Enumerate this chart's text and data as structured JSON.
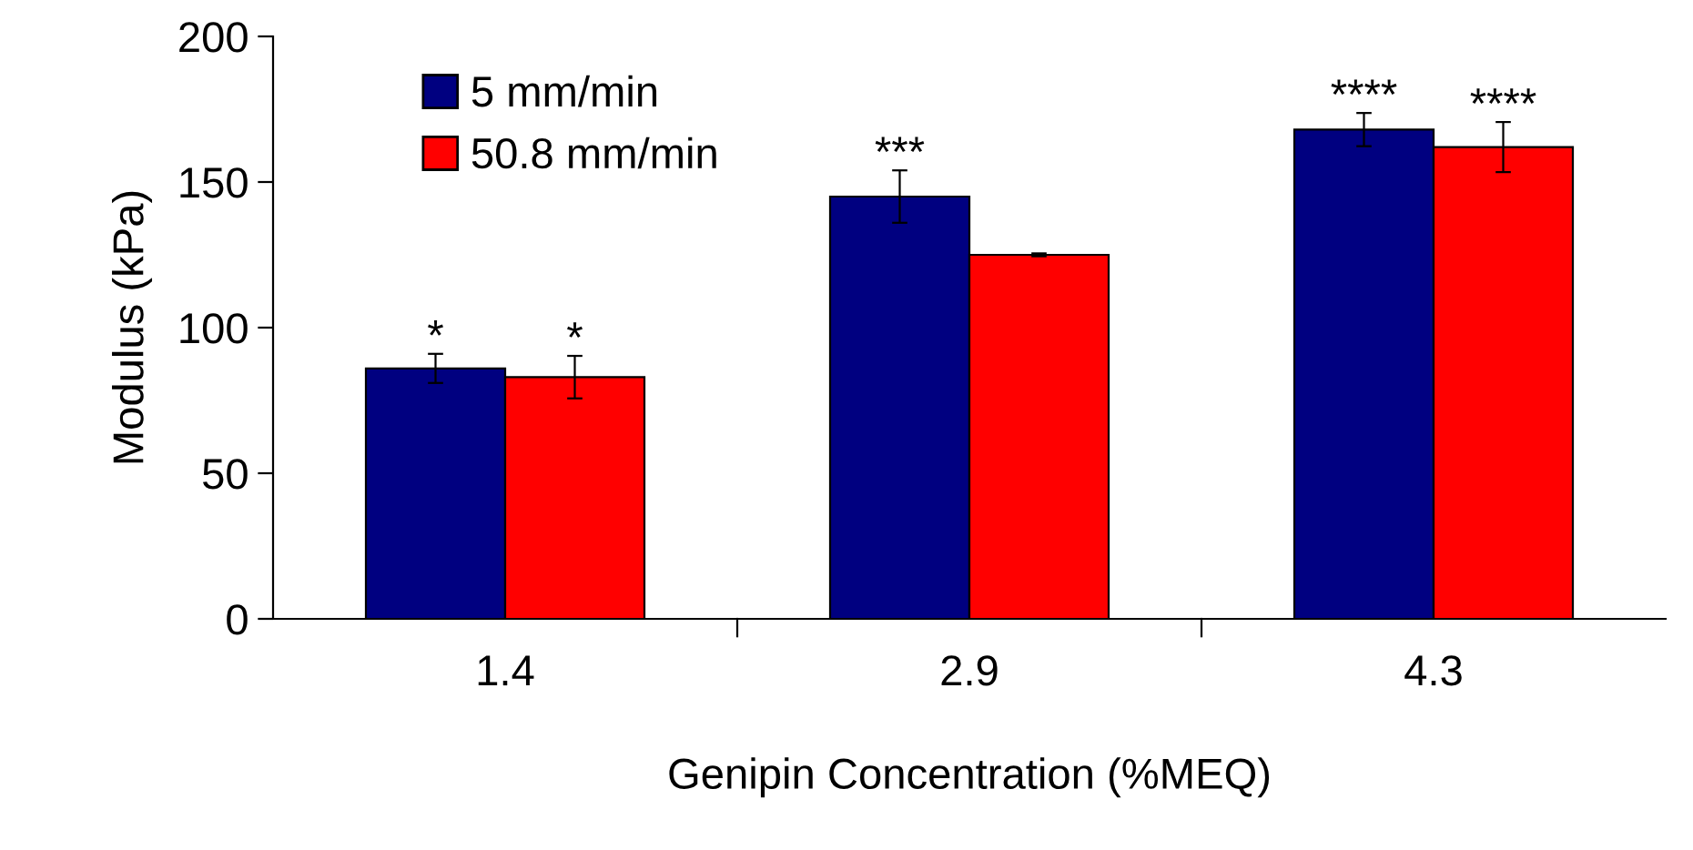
{
  "chart_data": {
    "type": "bar",
    "xlabel": "Genipin Concentration (%MEQ)",
    "ylabel": "Modulus (kPa)",
    "categories": [
      "1.4",
      "2.9",
      "4.3"
    ],
    "series": [
      {
        "name": "5 mm/min",
        "color": "#000080",
        "values": [
          86,
          145,
          168
        ],
        "errors": [
          5,
          9,
          5.7
        ]
      },
      {
        "name": "50.8 mm/min",
        "color": "#ff0000",
        "values": [
          83,
          125,
          162
        ],
        "errors": [
          7.3,
          0.5,
          8.6
        ]
      }
    ],
    "ylim": [
      0,
      200
    ],
    "yticks": [
      0,
      50,
      100,
      150,
      200
    ],
    "grid": false,
    "legend": "top left",
    "annotations": [
      {
        "text": "*",
        "x": "1.4",
        "y": 86
      },
      {
        "text": "*",
        "x": "1.4",
        "y": 83
      },
      {
        "text": "***",
        "x": "2.9",
        "y": 145
      },
      {
        "text": "****",
        "x": "4.3",
        "y": 168
      },
      {
        "text": "****",
        "x": "4.3",
        "y": 162
      }
    ]
  }
}
